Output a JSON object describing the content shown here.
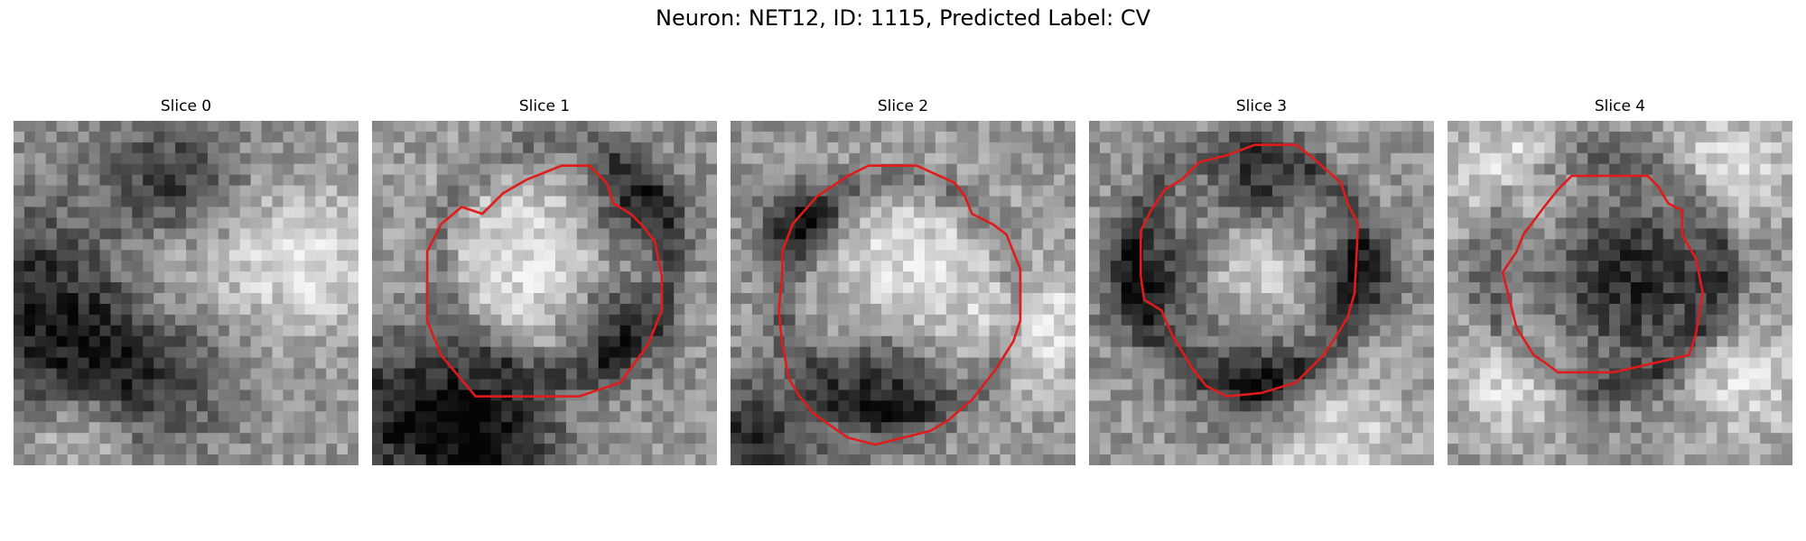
{
  "figure": {
    "title": "Neuron: NET12, ID: 1115, Predicted Label: CV"
  },
  "panels": [
    {
      "title": "Slice 0",
      "contour": false,
      "seed": 11,
      "dark_blobs": [
        [
          0.05,
          0.55,
          0.22
        ],
        [
          0.35,
          0.72,
          0.18
        ],
        [
          0.45,
          0.2,
          0.14
        ]
      ],
      "light_blobs": [
        [
          0.45,
          0.42,
          0.16
        ],
        [
          0.85,
          0.4,
          0.14
        ],
        [
          0.2,
          0.9,
          0.12
        ]
      ]
    },
    {
      "title": "Slice 1",
      "contour": true,
      "seed": 23,
      "dark_blobs": [
        [
          0.1,
          0.85,
          0.18
        ],
        [
          0.35,
          0.9,
          0.15
        ],
        [
          0.7,
          0.6,
          0.1
        ],
        [
          0.75,
          0.25,
          0.1
        ]
      ],
      "light_blobs": [
        [
          0.45,
          0.42,
          0.2
        ]
      ]
    },
    {
      "title": "Slice 2",
      "contour": true,
      "seed": 37,
      "dark_blobs": [
        [
          0.05,
          0.95,
          0.15
        ],
        [
          0.45,
          0.75,
          0.12
        ],
        [
          0.2,
          0.3,
          0.08
        ]
      ],
      "light_blobs": [
        [
          0.52,
          0.45,
          0.18
        ],
        [
          0.9,
          0.6,
          0.12
        ]
      ]
    },
    {
      "title": "Slice 3",
      "contour": true,
      "seed": 51,
      "dark_blobs": [
        [
          0.2,
          0.45,
          0.12
        ],
        [
          0.5,
          0.2,
          0.1
        ],
        [
          0.5,
          0.75,
          0.12
        ],
        [
          0.75,
          0.45,
          0.1
        ]
      ],
      "light_blobs": [
        [
          0.5,
          0.42,
          0.14
        ],
        [
          0.7,
          0.95,
          0.15
        ]
      ]
    },
    {
      "title": "Slice 4",
      "contour": true,
      "seed": 67,
      "dark_blobs": [
        [
          0.55,
          0.45,
          0.2
        ]
      ],
      "light_blobs": [
        [
          0.2,
          0.15,
          0.14
        ],
        [
          0.8,
          0.15,
          0.14
        ],
        [
          0.2,
          0.75,
          0.12
        ],
        [
          0.85,
          0.75,
          0.12
        ]
      ]
    }
  ],
  "colors": {
    "contour": "#e01b1b"
  }
}
